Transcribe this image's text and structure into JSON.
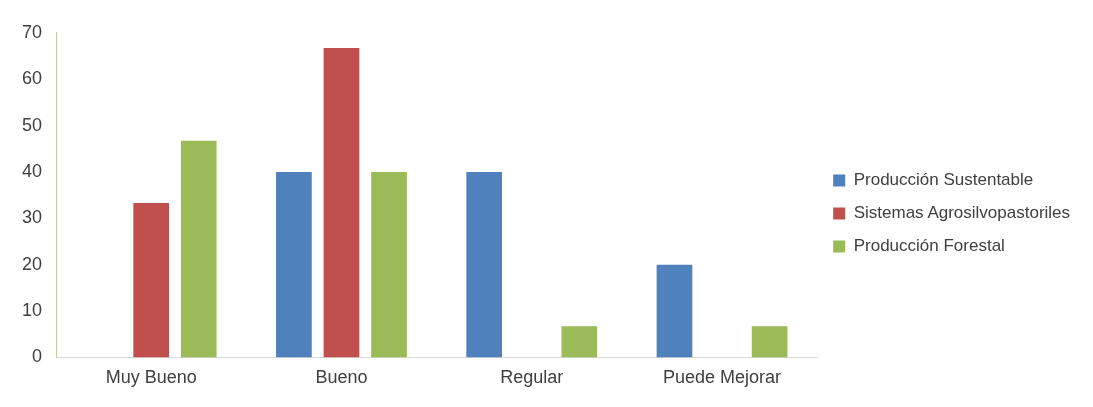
{
  "chart_data": {
    "type": "bar",
    "categories": [
      "Muy Bueno",
      "Bueno",
      "Regular",
      "Puede Mejorar"
    ],
    "series": [
      {
        "name": "Producción Sustentable",
        "color": "#4f81bd",
        "values": [
          0,
          40,
          40,
          20
        ]
      },
      {
        "name": "Sistemas Agrosilvopastoriles",
        "color": "#c0504d",
        "values": [
          33.3,
          66.7,
          0,
          0
        ]
      },
      {
        "name": "Producción Forestal",
        "color": "#9bbb59",
        "values": [
          46.7,
          40,
          6.7,
          6.7
        ]
      }
    ],
    "ylim": [
      0,
      70
    ],
    "yticks": [
      0,
      10,
      20,
      30,
      40,
      50,
      60,
      70
    ],
    "grid": false,
    "legend": "right"
  }
}
